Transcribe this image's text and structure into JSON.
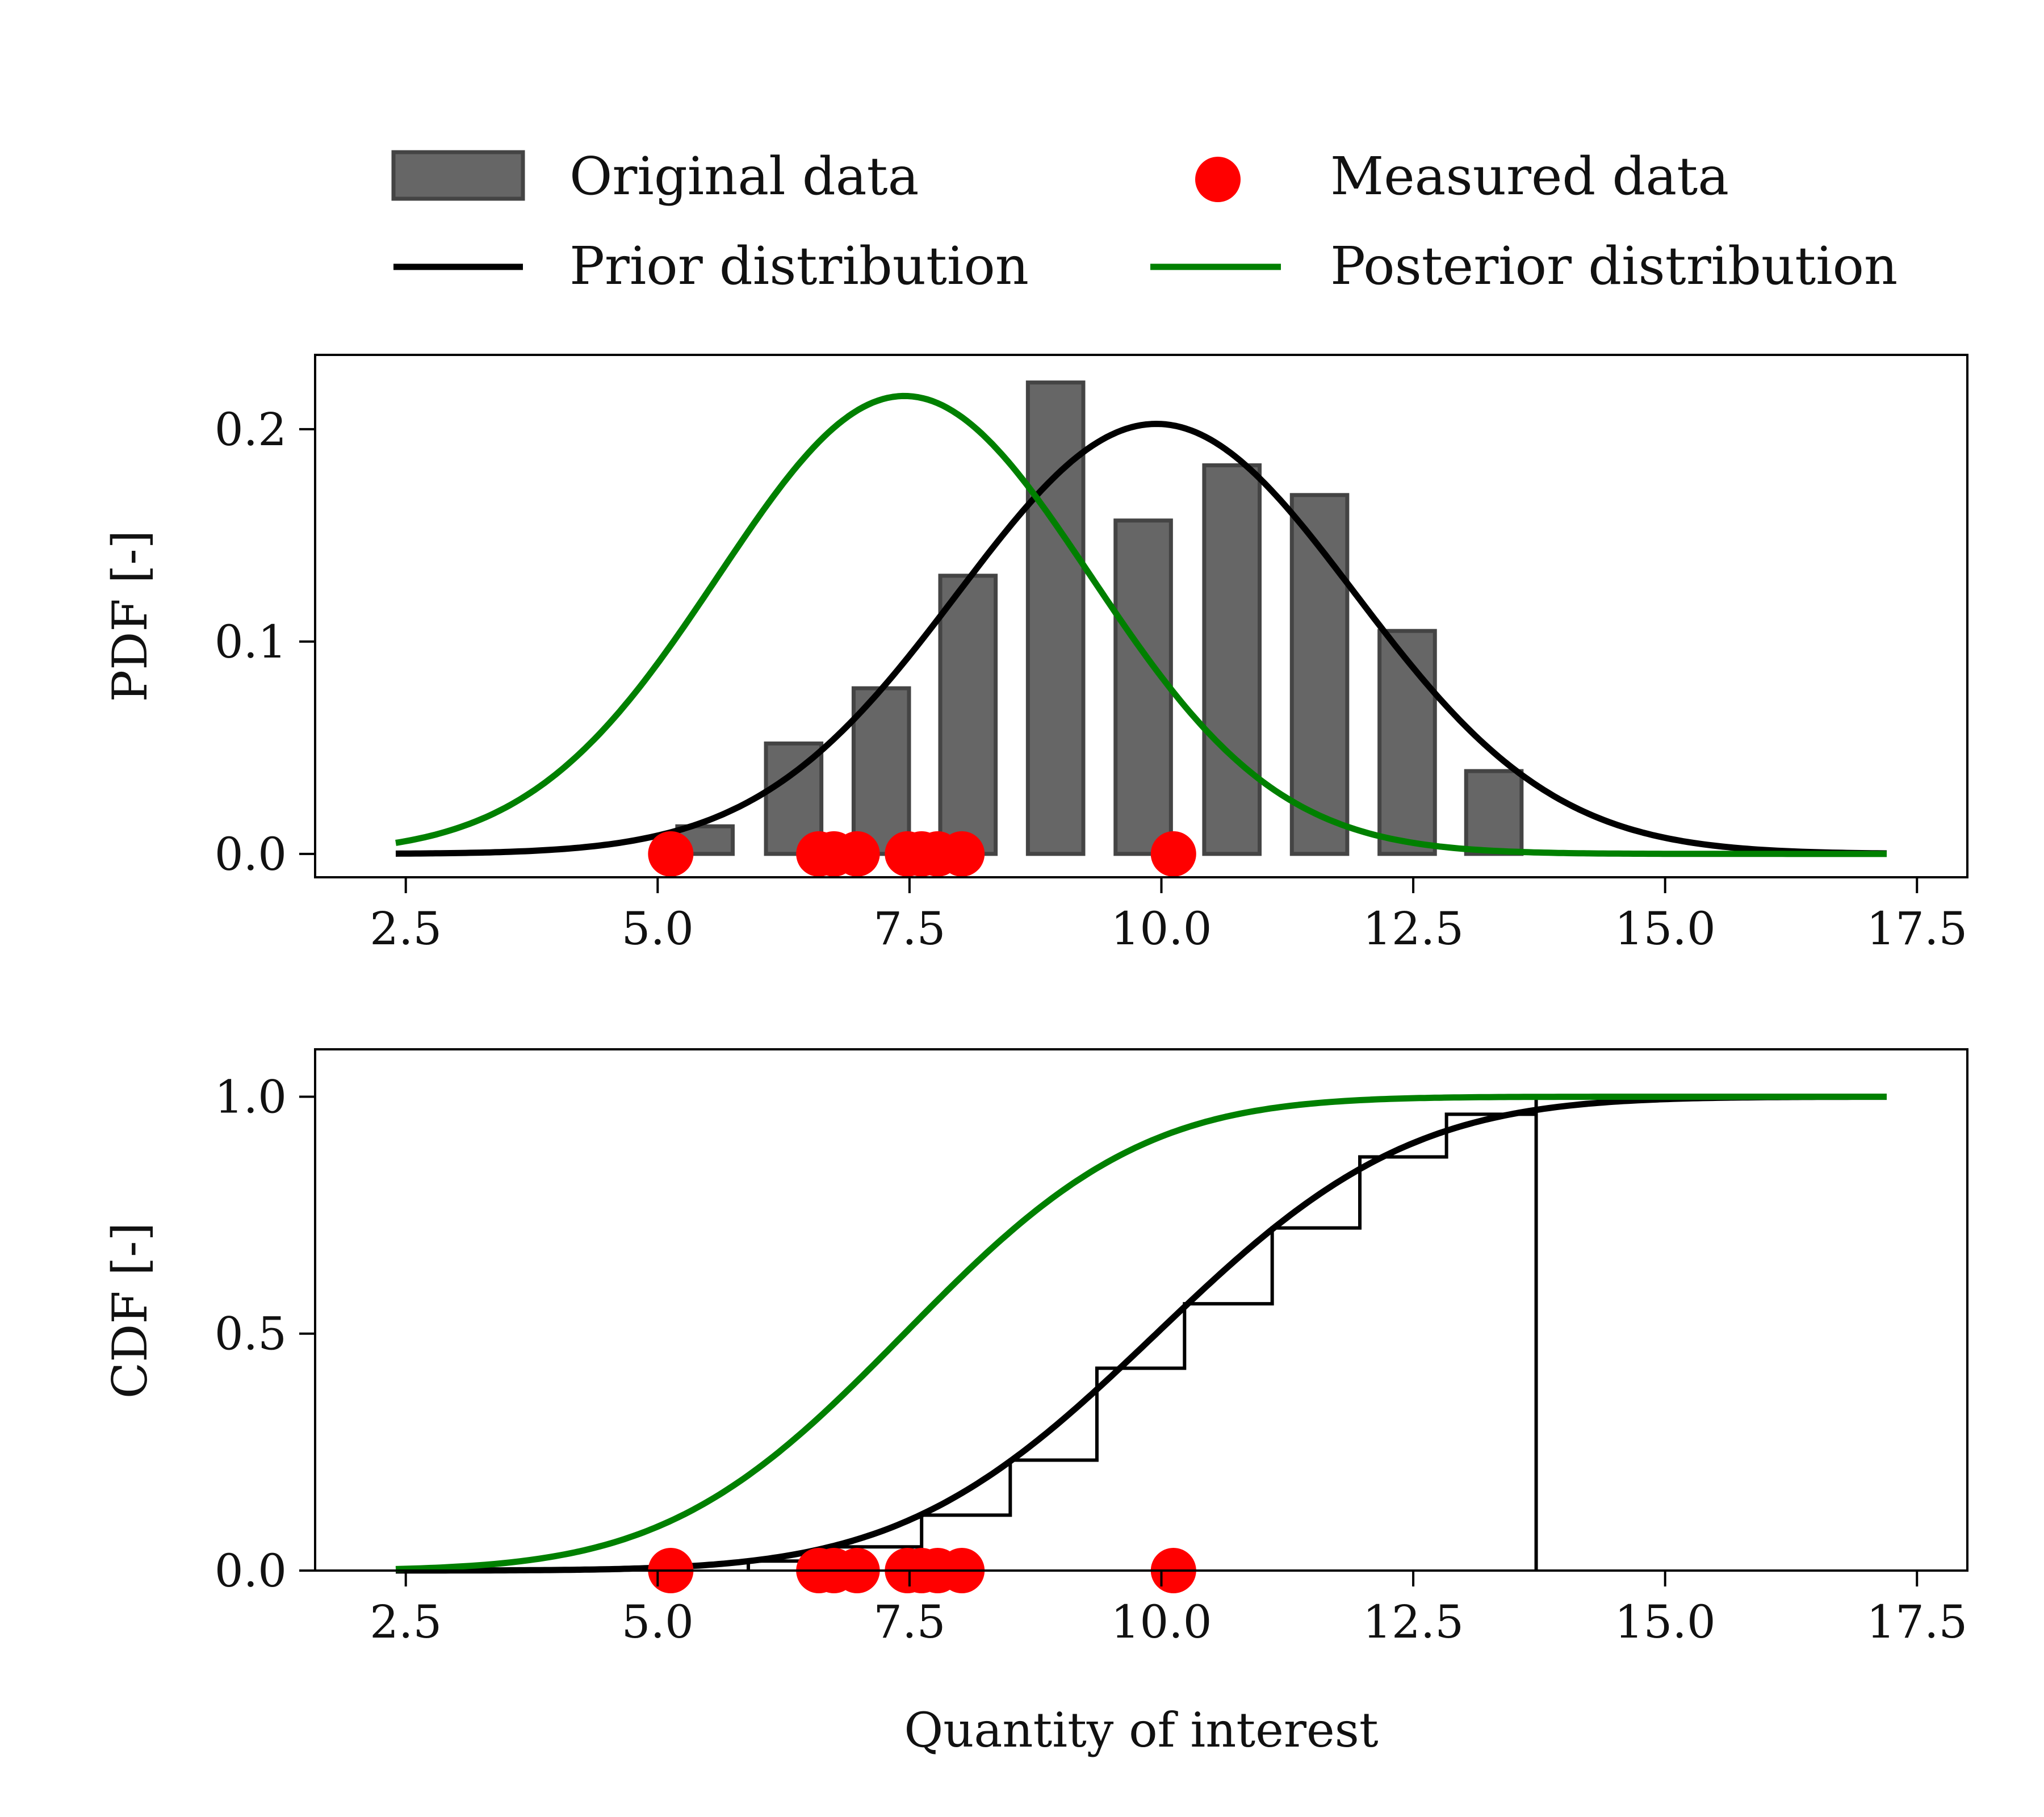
{
  "legend": {
    "placement": "top, above both panels, two columns",
    "entries": [
      {
        "label": "Original data",
        "marker": "bar",
        "color": "#666666"
      },
      {
        "label": "Measured data",
        "marker": "dot",
        "color": "#ff0000"
      },
      {
        "label": "Prior distribution",
        "marker": "line",
        "color": "#000000"
      },
      {
        "label": "Posterior distribution",
        "marker": "line",
        "color": "#008000"
      }
    ]
  },
  "chart_data": [
    {
      "type": "bar",
      "panel": "top",
      "xlabel": "",
      "ylabel": "PDF [-]",
      "xlim": [
        1.6,
        18.0
      ],
      "ylim": [
        -0.011,
        0.235
      ],
      "xticks": [
        2.5,
        5.0,
        7.5,
        10.0,
        12.5,
        15.0,
        17.5
      ],
      "xtick_labels": [
        "2.5",
        "5.0",
        "7.5",
        "10.0",
        "12.5",
        "15.0",
        "17.5"
      ],
      "yticks": [
        0.0,
        0.1,
        0.2
      ],
      "ytick_labels": [
        "0.0",
        "0.1",
        "0.2"
      ],
      "grid": false,
      "histogram": {
        "name": "Original data",
        "color": "#666666",
        "bar_width": 0.55,
        "bins": [
          {
            "x": 5.47,
            "value": 0.013
          },
          {
            "x": 6.35,
            "value": 0.052
          },
          {
            "x": 7.22,
            "value": 0.078
          },
          {
            "x": 8.08,
            "value": 0.131
          },
          {
            "x": 8.95,
            "value": 0.222
          },
          {
            "x": 9.82,
            "value": 0.157
          },
          {
            "x": 10.7,
            "value": 0.183
          },
          {
            "x": 11.57,
            "value": 0.169
          },
          {
            "x": 12.44,
            "value": 0.105
          },
          {
            "x": 13.3,
            "value": 0.039
          }
        ]
      },
      "series": [
        {
          "name": "Prior distribution",
          "kind": "normal_pdf",
          "mean": 9.95,
          "sd": 1.97,
          "x_range": [
            2.4,
            17.2
          ],
          "color": "#000000"
        },
        {
          "name": "Posterior distribution",
          "kind": "normal_pdf",
          "mean": 7.45,
          "sd": 1.85,
          "x_range": [
            2.4,
            17.2
          ],
          "color": "#008000"
        }
      ],
      "points": {
        "name": "Measured data",
        "color": "#ff0000",
        "y": 0.0,
        "x": [
          5.13,
          6.6,
          6.75,
          6.98,
          7.48,
          7.62,
          7.78,
          8.02,
          10.12
        ]
      }
    },
    {
      "type": "line",
      "panel": "bottom",
      "xlabel": "Quantity of interest",
      "ylabel": "CDF [-]",
      "xlim": [
        1.6,
        18.0
      ],
      "ylim": [
        0.0,
        1.1
      ],
      "xticks": [
        2.5,
        5.0,
        7.5,
        10.0,
        12.5,
        15.0,
        17.5
      ],
      "xtick_labels": [
        "2.5",
        "5.0",
        "7.5",
        "10.0",
        "12.5",
        "15.0",
        "17.5"
      ],
      "yticks": [
        0.0,
        0.5,
        1.0
      ],
      "ytick_labels": [
        "0.0",
        "0.5",
        "1.0"
      ],
      "grid": false,
      "empirical_cdf": {
        "name": "Original data",
        "color": "#000000",
        "step_x": [
          5.9,
          6.76,
          7.62,
          8.5,
          9.36,
          10.23,
          11.1,
          11.97,
          12.83,
          13.72
        ],
        "step_y": [
          0.02,
          0.05,
          0.117,
          0.233,
          0.427,
          0.563,
          0.723,
          0.873,
          0.963,
          1.0
        ]
      },
      "series": [
        {
          "name": "Prior distribution",
          "kind": "normal_cdf",
          "mean": 9.95,
          "sd": 1.97,
          "x_range": [
            2.4,
            17.2
          ],
          "color": "#000000"
        },
        {
          "name": "Posterior distribution",
          "kind": "normal_cdf",
          "mean": 7.45,
          "sd": 1.85,
          "x_range": [
            2.4,
            17.2
          ],
          "color": "#008000"
        }
      ],
      "points": {
        "name": "Measured data",
        "color": "#ff0000",
        "y": 0.0,
        "x": [
          5.13,
          6.6,
          6.75,
          6.98,
          7.48,
          7.62,
          7.78,
          8.02,
          10.12
        ]
      }
    }
  ]
}
